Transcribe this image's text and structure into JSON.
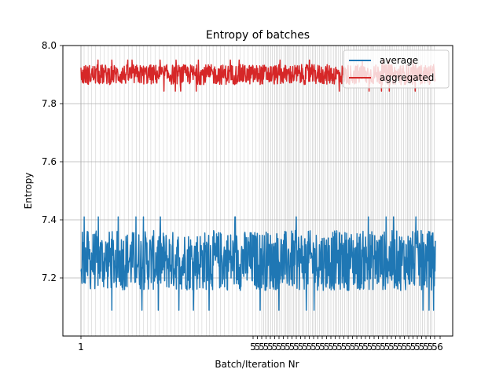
{
  "chart_data": {
    "type": "line",
    "title": "Entropy of batches",
    "xlabel": "Batch/Iteration Nr",
    "ylabel": "Entropy",
    "xlim": [
      1,
      1000
    ],
    "ylim": [
      7.0,
      8.0
    ],
    "x_ticks": [
      "1",
      "5",
      "6"
    ],
    "y_ticks": [
      7.2,
      7.4,
      7.6,
      7.8,
      8.0
    ],
    "y_tick_labels": [
      "7.2",
      "7.4",
      "7.6",
      "7.8",
      "8.0"
    ],
    "grid": "on",
    "legend": "upper-right",
    "n_points": 1000,
    "series": [
      {
        "name": "average",
        "color": "#1f77b4",
        "mean": 7.26,
        "min": 7.05,
        "max": 7.41
      },
      {
        "name": "aggregated",
        "color": "#d62728",
        "mean": 7.9,
        "min": 7.83,
        "max": 7.95
      }
    ]
  }
}
